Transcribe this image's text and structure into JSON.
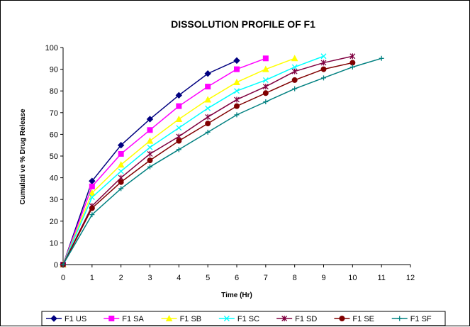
{
  "chart_data": {
    "type": "line",
    "title": "DISSOLUTION PROFILE OF F1",
    "xlabel": "Time (Hr)",
    "ylabel": "Cumulati ve % Drug Release",
    "xlim": [
      0,
      12
    ],
    "ylim": [
      0,
      100
    ],
    "x_ticks": [
      "0",
      "1",
      "2",
      "3",
      "4",
      "5",
      "6",
      "7",
      "8",
      "9",
      "10",
      "11",
      "12"
    ],
    "y_ticks": [
      "0",
      "10",
      "20",
      "30",
      "40",
      "50",
      "60",
      "70",
      "80",
      "90",
      "100"
    ],
    "grid": false,
    "legend_position": "bottom",
    "series": [
      {
        "name": "F1 US",
        "color": "#000080",
        "marker": "diamond",
        "x": [
          0,
          1,
          2,
          3,
          4,
          5,
          6
        ],
        "y": [
          0,
          38.5,
          55,
          67,
          78,
          88,
          94
        ]
      },
      {
        "name": "F1 SA",
        "color": "#ff00ff",
        "marker": "square",
        "x": [
          0,
          1,
          2,
          3,
          4,
          5,
          6,
          7
        ],
        "y": [
          0,
          36,
          51,
          62,
          73,
          82,
          90,
          95
        ]
      },
      {
        "name": "F1 SB",
        "color": "#ffff00",
        "marker": "triangle",
        "x": [
          0,
          1,
          2,
          3,
          4,
          5,
          6,
          7,
          8
        ],
        "y": [
          0,
          33,
          46,
          57,
          67,
          76,
          84,
          90,
          95
        ]
      },
      {
        "name": "F1 SC",
        "color": "#00ffff",
        "marker": "x",
        "x": [
          0,
          1,
          2,
          3,
          4,
          5,
          6,
          7,
          8,
          9
        ],
        "y": [
          0,
          31,
          43,
          54,
          63,
          72,
          80,
          85,
          91,
          96
        ]
      },
      {
        "name": "F1 SD",
        "color": "#800040",
        "marker": "star",
        "x": [
          0,
          1,
          2,
          3,
          4,
          5,
          6,
          7,
          8,
          9,
          10
        ],
        "y": [
          0,
          27,
          40,
          51,
          59,
          68,
          76,
          82,
          89,
          93,
          96
        ]
      },
      {
        "name": "F1 SE",
        "color": "#800000",
        "marker": "circle",
        "x": [
          0,
          1,
          2,
          3,
          4,
          5,
          6,
          7,
          8,
          9,
          10
        ],
        "y": [
          0,
          26,
          38,
          48,
          57,
          65,
          73,
          79,
          85,
          90,
          93
        ]
      },
      {
        "name": "F1 SF",
        "color": "#008080",
        "marker": "plus",
        "x": [
          0,
          1,
          2,
          3,
          4,
          5,
          6,
          7,
          8,
          9,
          10,
          11
        ],
        "y": [
          0,
          23,
          35,
          45,
          53,
          61,
          69,
          75,
          81,
          86,
          91,
          95
        ]
      }
    ]
  }
}
